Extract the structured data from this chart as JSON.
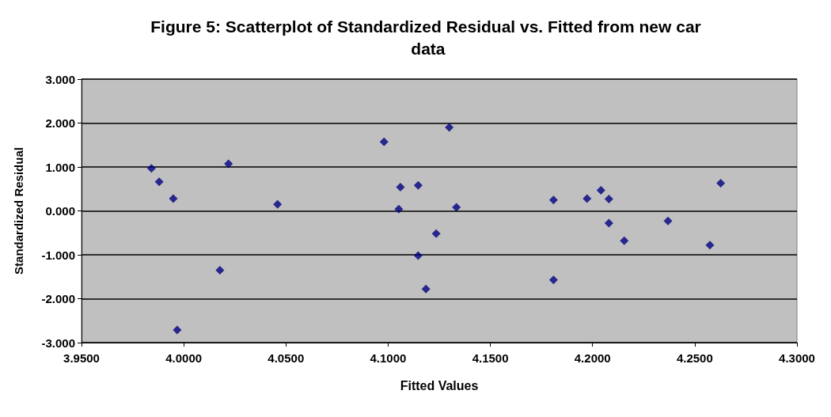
{
  "chart_data": {
    "type": "scatter",
    "title": "Figure 5: Scatterplot of Standardized Residual vs. Fitted from new car data",
    "xlabel": "Fitted Values",
    "ylabel": "Standardized Residual",
    "x": [
      3.9842,
      3.988,
      3.9949,
      3.9968,
      4.0177,
      4.0219,
      4.0459,
      4.098,
      4.1052,
      4.106,
      4.1147,
      4.1147,
      4.1185,
      4.1235,
      4.1299,
      4.1334,
      4.1809,
      4.1809,
      4.1973,
      4.2041,
      4.208,
      4.208,
      4.2155,
      4.2369,
      4.2574,
      4.2627
    ],
    "series": [
      {
        "color": "#000080",
        "values": [
          0.97,
          0.66,
          0.28,
          -2.71,
          -1.35,
          1.07,
          0.15,
          1.57,
          0.04,
          0.54,
          0.58,
          -1.02,
          -1.78,
          -0.52,
          1.9,
          0.08,
          0.25,
          -1.57,
          0.28,
          0.47,
          0.27,
          -0.28,
          -0.68,
          -0.23,
          -0.78,
          0.63
        ]
      }
    ],
    "xlim": [
      3.95,
      4.3
    ],
    "xticks": [
      {
        "value": 3.95,
        "label": "3.9500"
      },
      {
        "value": 4.0,
        "label": "4.0000"
      },
      {
        "value": 4.05,
        "label": "4.0500"
      },
      {
        "value": 4.1,
        "label": "4.1000"
      },
      {
        "value": 4.15,
        "label": "4.1500"
      },
      {
        "value": 4.2,
        "label": "4.2000"
      },
      {
        "value": 4.25,
        "label": "4.2500"
      },
      {
        "value": 4.3,
        "label": "4.3000"
      }
    ],
    "ylim": [
      -3,
      3
    ],
    "yticks": [
      {
        "value": -3,
        "label": "-3.000"
      },
      {
        "value": -2,
        "label": "-2.000"
      },
      {
        "value": -1,
        "label": "-1.000"
      },
      {
        "value": 0,
        "label": "0.000"
      },
      {
        "value": 1,
        "label": "1.000"
      },
      {
        "value": 2,
        "label": "2.000"
      },
      {
        "value": 3,
        "label": "3.000"
      }
    ],
    "grid": "y",
    "marker": "diamond"
  }
}
